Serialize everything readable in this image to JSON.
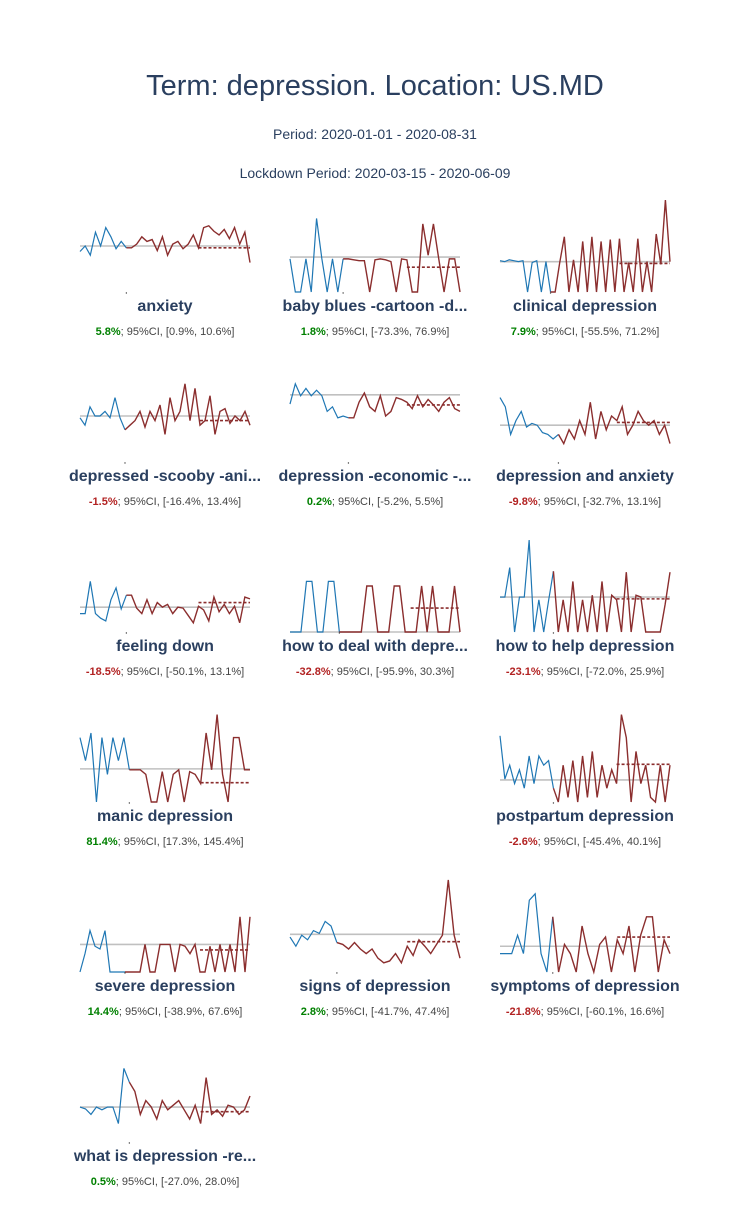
{
  "header": {
    "title": "Term: depression. Location: US.MD",
    "period": "Period: 2020-01-01 - 2020-08-31",
    "lockdown": "Lockdown Period: 2020-03-15 - 2020-06-09"
  },
  "colors": {
    "pre_lockdown": "#1f77b4",
    "lockdown": "#8b2e2e",
    "baseline": "#c0c0c0",
    "projection": "#8b2e2e",
    "positive": "#008000",
    "negative": "#b22222"
  },
  "chart_data": [
    {
      "type": "line",
      "label": "anxiety",
      "change": "5.8%",
      "ci": "; 95%CI, [0.9%, 10.6%]",
      "sign": "pos",
      "baseline": 0.5,
      "projection": 0.48,
      "pre": [
        0.44,
        0.5,
        0.4,
        0.65,
        0.5,
        0.7,
        0.6,
        0.47,
        0.55,
        0.48
      ],
      "post": [
        0.48,
        0.52,
        0.6,
        0.55,
        0.57,
        0.45,
        0.6,
        0.4,
        0.52,
        0.55,
        0.47,
        0.52,
        0.62,
        0.48,
        0.7,
        0.72,
        0.66,
        0.62,
        0.68,
        0.58,
        0.7,
        0.52,
        0.65,
        0.32
      ]
    },
    {
      "type": "line",
      "label": "baby blues -cartoon -d...",
      "change": "1.8%",
      "ci": "; 95%CI, [-73.3%, 76.9%]",
      "sign": "pos",
      "baseline": 0.38,
      "projection": 0.27,
      "pre": [
        0.36,
        0.0,
        0.0,
        0.36,
        0.0,
        0.8,
        0.36,
        0.0,
        0.36,
        0.0,
        0.36
      ],
      "post": [
        0.36,
        0.35,
        0.34,
        0.34,
        0.0,
        0.35,
        0.36,
        0.35,
        0.33,
        0.0,
        0.36,
        0.35,
        0.0,
        0.0,
        0.74,
        0.4,
        0.74,
        0.36,
        0.0,
        0.36,
        0.36,
        0.0
      ]
    },
    {
      "type": "line",
      "label": "clinical depression",
      "change": "7.9%",
      "ci": "; 95%CI, [-55.5%, 71.2%]",
      "sign": "pos",
      "baseline": 0.33,
      "projection": 0.31,
      "pre": [
        0.34,
        0.33,
        0.35,
        0.34,
        0.33,
        0.34,
        0.0,
        0.32,
        0.34,
        0.0,
        0.33,
        0.0
      ],
      "post": [
        0.0,
        0.32,
        0.6,
        0.0,
        0.35,
        0.0,
        0.55,
        0.0,
        0.6,
        0.0,
        0.55,
        0.0,
        0.57,
        0.0,
        0.58,
        0.0,
        0.32,
        0.0,
        0.58,
        0.0,
        0.33,
        0.0,
        0.63,
        0.3,
        1.0,
        0.33
      ]
    },
    {
      "type": "line",
      "label": "depressed -scooby -ani...",
      "change": "-1.5%",
      "ci": "; 95%CI, [-16.4%, 13.4%]",
      "sign": "neg",
      "baseline": 0.5,
      "projection": 0.45,
      "pre": [
        0.48,
        0.4,
        0.6,
        0.5,
        0.5,
        0.55,
        0.48,
        0.7,
        0.48,
        0.35
      ],
      "post": [
        0.4,
        0.45,
        0.55,
        0.38,
        0.55,
        0.45,
        0.62,
        0.3,
        0.7,
        0.45,
        0.55,
        0.85,
        0.45,
        0.8,
        0.4,
        0.45,
        0.72,
        0.3,
        0.55,
        0.58,
        0.42,
        0.5,
        0.45,
        0.55,
        0.4
      ]
    },
    {
      "type": "line",
      "label": "depression -economic -...",
      "change": "0.2%",
      "ci": "; 95%CI, [-5.2%, 5.5%]",
      "sign": "pos",
      "baseline": 0.73,
      "projection": 0.62,
      "pre": [
        0.63,
        0.85,
        0.72,
        0.8,
        0.72,
        0.78,
        0.72,
        0.55,
        0.6,
        0.48,
        0.5,
        0.48
      ],
      "post": [
        0.48,
        0.65,
        0.75,
        0.6,
        0.55,
        0.72,
        0.5,
        0.55,
        0.7,
        0.68,
        0.65,
        0.58,
        0.72,
        0.6,
        0.68,
        0.62,
        0.55,
        0.65,
        0.7,
        0.58,
        0.55
      ]
    },
    {
      "type": "line",
      "label": "depression and anxiety",
      "change": "-9.8%",
      "ci": "; 95%CI, [-32.7%, 13.1%]",
      "sign": "neg",
      "baseline": 0.4,
      "projection": 0.43,
      "pre": [
        0.7,
        0.6,
        0.3,
        0.45,
        0.55,
        0.38,
        0.42,
        0.4,
        0.32,
        0.3,
        0.25,
        0.3
      ],
      "post": [
        0.2,
        0.35,
        0.25,
        0.45,
        0.3,
        0.65,
        0.25,
        0.55,
        0.35,
        0.5,
        0.45,
        0.6,
        0.3,
        0.4,
        0.55,
        0.45,
        0.4,
        0.45,
        0.3,
        0.4,
        0.2
      ]
    },
    {
      "type": "line",
      "label": "feeling down",
      "change": "-18.5%",
      "ci": "; 95%CI, [-50.1%, 13.1%]",
      "sign": "neg",
      "baseline": 0.27,
      "projection": 0.32,
      "pre": [
        0.2,
        0.2,
        0.55,
        0.2,
        0.15,
        0.12,
        0.35,
        0.48,
        0.25,
        0.4
      ],
      "post": [
        0.4,
        0.26,
        0.2,
        0.35,
        0.2,
        0.32,
        0.27,
        0.3,
        0.2,
        0.27,
        0.26,
        0.18,
        0.1,
        0.28,
        0.24,
        0.12,
        0.38,
        0.22,
        0.3,
        0.2,
        0.28,
        0.1,
        0.38,
        0.36
      ]
    },
    {
      "type": "line",
      "label": "how to deal with depre...",
      "change": "-32.8%",
      "ci": "; 95%CI, [-95.9%, 30.3%]",
      "sign": "neg",
      "baseline": 0.0,
      "projection": 0.26,
      "pre": [
        0.0,
        0.0,
        0.0,
        0.55,
        0.55,
        0.0,
        0.0,
        0.55,
        0.55,
        0.0
      ],
      "post": [
        0.0,
        0.0,
        0.0,
        0.0,
        0.5,
        0.5,
        0.0,
        0.0,
        0.0,
        0.5,
        0.5,
        0.0,
        0.0,
        0.0,
        0.5,
        0.0,
        0.5,
        0.0,
        0.0,
        0.0,
        0.5,
        0.0
      ]
    },
    {
      "type": "line",
      "label": "how to help depression",
      "change": "-23.1%",
      "ci": "; 95%CI, [-72.0%, 25.9%]",
      "sign": "neg",
      "baseline": 0.38,
      "projection": 0.36,
      "pre": [
        0.38,
        0.38,
        0.7,
        0.0,
        0.38,
        0.38,
        1.0,
        0.0,
        0.35,
        0.0,
        0.34,
        0.66
      ],
      "post": [
        0.0,
        0.35,
        0.0,
        0.55,
        0.0,
        0.35,
        0.0,
        0.4,
        0.0,
        0.55,
        0.0,
        0.4,
        0.35,
        0.0,
        0.65,
        0.0,
        0.4,
        0.38,
        0.0,
        0.0,
        0.0,
        0.0,
        0.3,
        0.65
      ]
    },
    {
      "type": "line",
      "label": "manic depression",
      "change": "81.4%",
      "ci": "; 95%CI, [17.3%, 145.4%]",
      "sign": "pos",
      "baseline": 0.36,
      "projection": 0.21,
      "pre": [
        0.7,
        0.45,
        0.75,
        0.0,
        0.7,
        0.3,
        0.7,
        0.45,
        0.7,
        0.35
      ],
      "post": [
        0.35,
        0.35,
        0.3,
        0.0,
        0.0,
        0.33,
        0.0,
        0.3,
        0.35,
        0.0,
        0.33,
        0.3,
        0.2,
        0.75,
        0.35,
        0.95,
        0.3,
        0.0,
        0.7,
        0.7,
        0.35,
        0.35
      ]
    },
    {
      "type": "line",
      "label": "postpartum depression",
      "change": "-2.6%",
      "ci": "; 95%CI, [-45.4%, 40.1%]",
      "sign": "neg",
      "baseline": 0.24,
      "projection": 0.41,
      "pre": [
        0.72,
        0.25,
        0.4,
        0.2,
        0.35,
        0.15,
        0.5,
        0.2,
        0.5,
        0.4,
        0.45,
        0.15
      ],
      "post": [
        0.0,
        0.4,
        0.05,
        0.45,
        0.0,
        0.5,
        0.05,
        0.55,
        0.05,
        0.4,
        0.15,
        0.35,
        0.2,
        0.95,
        0.7,
        0.0,
        0.55,
        0.2,
        0.4,
        0.05,
        0.0,
        0.4,
        0.0,
        0.4
      ]
    },
    {
      "type": "line",
      "label": "severe depression",
      "change": "14.4%",
      "ci": "; 95%CI, [-38.9%, 67.6%]",
      "sign": "pos",
      "baseline": 0.3,
      "projection": 0.24,
      "pre": [
        0.0,
        0.2,
        0.45,
        0.28,
        0.25,
        0.45,
        0.0,
        0.0,
        0.0,
        0.0
      ],
      "post": [
        0.0,
        0.0,
        0.0,
        0.3,
        0.0,
        0.0,
        0.3,
        0.3,
        0.3,
        0.0,
        0.3,
        0.28,
        0.2,
        0.3,
        0.0,
        0.0,
        0.28,
        0.0,
        0.3,
        0.0,
        0.3,
        0.0,
        0.6,
        0.0,
        0.6
      ]
    },
    {
      "type": "line",
      "label": "signs of depression",
      "change": "2.8%",
      "ci": "; 95%CI, [-41.7%, 47.4%]",
      "sign": "pos",
      "baseline": 0.41,
      "projection": 0.33,
      "pre": [
        0.38,
        0.28,
        0.4,
        0.35,
        0.45,
        0.42,
        0.55,
        0.5,
        0.32
      ],
      "post": [
        0.3,
        0.25,
        0.32,
        0.25,
        0.2,
        0.25,
        0.15,
        0.1,
        0.12,
        0.2,
        0.1,
        0.28,
        0.18,
        0.35,
        0.28,
        0.2,
        0.3,
        0.4,
        1.0,
        0.4,
        0.15
      ]
    },
    {
      "type": "line",
      "label": "symptoms of depression",
      "change": "-21.8%",
      "ci": "; 95%CI, [-60.1%, 16.6%]",
      "sign": "neg",
      "baseline": 0.28,
      "projection": 0.38,
      "pre": [
        0.2,
        0.2,
        0.2,
        0.4,
        0.2,
        0.78,
        0.85,
        0.2,
        0.0,
        0.6
      ],
      "post": [
        0.0,
        0.3,
        0.2,
        0.0,
        0.5,
        0.2,
        0.0,
        0.3,
        0.38,
        0.0,
        0.35,
        0.2,
        0.5,
        0.0,
        0.4,
        0.6,
        0.6,
        0.0,
        0.35,
        0.2
      ]
    },
    {
      "type": "line",
      "label": "what is depression -re...",
      "change": "0.5%",
      "ci": "; 95%CI, [-27.0%, 28.0%]",
      "sign": "pos",
      "baseline": 0.38,
      "projection": 0.33,
      "pre": [
        0.38,
        0.36,
        0.3,
        0.38,
        0.35,
        0.38,
        0.38,
        0.2,
        0.8,
        0.65
      ],
      "post": [
        0.55,
        0.3,
        0.45,
        0.38,
        0.25,
        0.45,
        0.35,
        0.4,
        0.45,
        0.35,
        0.25,
        0.4,
        0.2,
        0.7,
        0.3,
        0.35,
        0.28,
        0.4,
        0.38,
        0.3,
        0.35,
        0.5
      ]
    }
  ]
}
